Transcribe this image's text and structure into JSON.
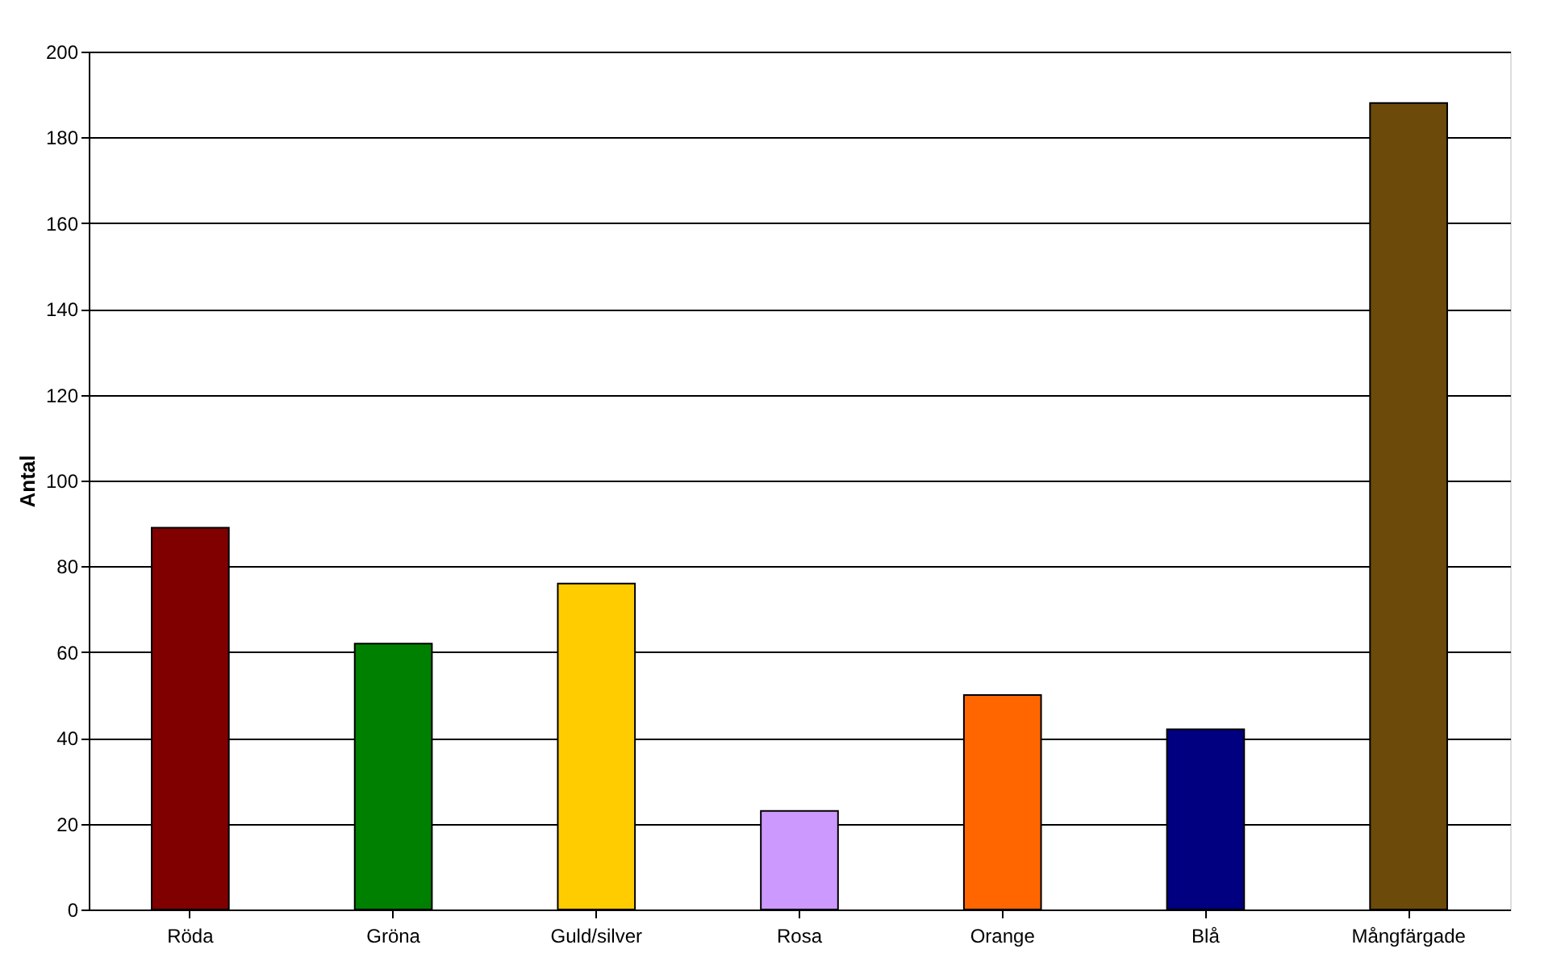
{
  "chart_data": {
    "type": "bar",
    "ylabel": "Antal",
    "categories": [
      "Röda",
      "Gröna",
      "Guld/silver",
      "Rosa",
      "Orange",
      "Blå",
      "Mångfärgade"
    ],
    "values": [
      89,
      62,
      76,
      23,
      50,
      42,
      188
    ],
    "colors": [
      "#800000",
      "#008000",
      "#ffcc00",
      "#cc99ff",
      "#ff6600",
      "#000080",
      "#6b4a0a"
    ],
    "ylim": [
      0,
      200
    ],
    "yticks": [
      0,
      20,
      40,
      60,
      80,
      100,
      120,
      140,
      160,
      180,
      200
    ],
    "grid": "y",
    "legend": false
  }
}
